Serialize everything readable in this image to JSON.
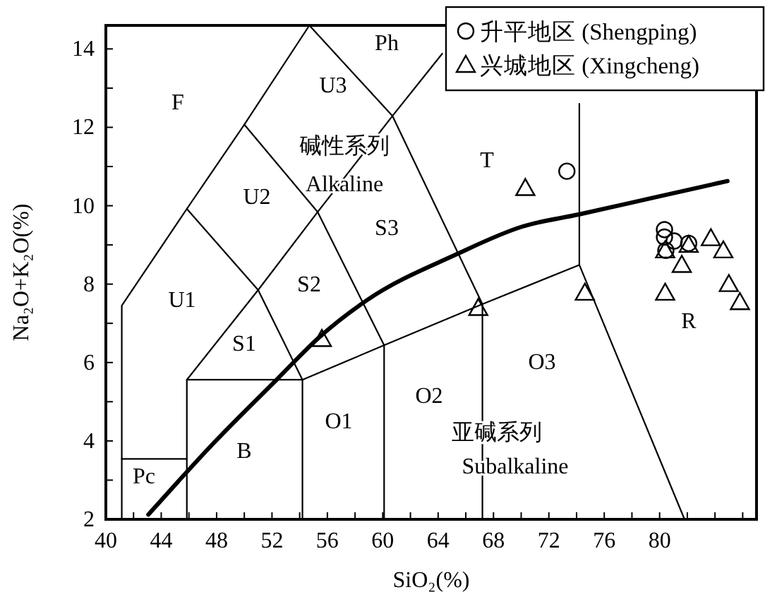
{
  "chart_data": {
    "type": "scatter",
    "xlabel": "SiO₂(%)",
    "ylabel": "Na₂O+K₂O(%)",
    "xlim": [
      40,
      87
    ],
    "ylim": [
      2,
      14.6
    ],
    "xticks": [
      40,
      {
        "value": 42,
        "label": null
      },
      44,
      {
        "value": 46,
        "label": null
      },
      48,
      {
        "value": 50,
        "label": null
      },
      52,
      {
        "value": 54,
        "label": null
      },
      56,
      {
        "value": 58,
        "label": null
      },
      60,
      {
        "value": 62,
        "label": null
      },
      64,
      {
        "value": 66,
        "label": null
      },
      68,
      {
        "value": 70,
        "label": null
      },
      72,
      {
        "value": 74,
        "label": null
      },
      76,
      {
        "value": 78,
        "label": null
      },
      80,
      {
        "value": 82,
        "label": null
      },
      {
        "value": 84,
        "label": null
      },
      {
        "value": 86,
        "label": null
      }
    ],
    "yticks": [
      2,
      {
        "value": 3,
        "label": null
      },
      4,
      {
        "value": 5,
        "label": null
      },
      6,
      {
        "value": 7,
        "label": null
      },
      8,
      {
        "value": 9,
        "label": null
      },
      10,
      {
        "value": 11,
        "label": null
      },
      12,
      {
        "value": 13,
        "label": null
      },
      14
    ],
    "grid": false,
    "legend": "top right",
    "series": [
      {
        "name": "升平地区 (Shengping)",
        "marker": "circle",
        "color": "#000000",
        "x": [
          73.3,
          80.35,
          80.35,
          80.45,
          81.05,
          82.1
        ],
        "values": [
          10.88,
          9.39,
          9.2,
          8.86,
          9.1,
          9.04
        ]
      },
      {
        "name": "兴城地区 (Xingcheng)",
        "marker": "triangle",
        "color": "#000000",
        "x": [
          55.6,
          66.9,
          70.3,
          74.6,
          80.4,
          80.4,
          81.6,
          82.1,
          83.7,
          84.6,
          85.0,
          85.8
        ],
        "values": [
          6.6,
          7.39,
          10.45,
          7.78,
          7.78,
          8.86,
          8.49,
          9.0,
          9.17,
          8.86,
          8.0,
          7.54
        ]
      },
      {
        "type": "line",
        "line_style": "solid",
        "color": "#000000",
        "x": [
          43.07,
          47.77,
          52.3,
          55.4,
          58.9,
          65.2,
          70.1,
          74.2,
          79.5,
          84.9
        ],
        "values": [
          2.12,
          3.94,
          5.55,
          6.64,
          7.6,
          8.74,
          9.47,
          9.78,
          10.2,
          10.63
        ]
      },
      {
        "type": "line",
        "color": "#000000",
        "x": [
          41.15,
          41.15,
          45.85,
          50,
          54.7
        ],
        "values": [
          2,
          7.45,
          9.92,
          12.07,
          14.6
        ]
      },
      {
        "type": "line",
        "color": "#000000",
        "x": [
          45.85,
          51.0,
          54.2
        ],
        "values": [
          9.92,
          7.85,
          5.56
        ]
      },
      {
        "type": "line",
        "color": "#000000",
        "x": [
          50,
          55.3,
          60.1,
          60.1
        ],
        "values": [
          12.07,
          9.84,
          6.44,
          2
        ]
      },
      {
        "type": "line",
        "color": "#000000",
        "x": [
          54.7,
          60.7,
          67.2,
          67.2
        ],
        "values": [
          14.6,
          12.29,
          7.49,
          2
        ]
      },
      {
        "type": "line",
        "color": "#000000",
        "x": [
          45.85,
          45.85,
          51.0,
          55.3,
          60.7,
          64.3
        ],
        "values": [
          2,
          5.56,
          7.85,
          9.84,
          12.29,
          13.88
        ]
      },
      {
        "type": "line",
        "color": "#000000",
        "x": [
          45.85,
          54.2,
          54.2
        ],
        "values": [
          5.56,
          5.56,
          2
        ]
      },
      {
        "type": "line",
        "color": "#000000",
        "x": [
          54.2,
          60.1,
          67.2,
          74.2,
          81.8
        ],
        "values": [
          5.56,
          6.44,
          7.49,
          8.49,
          2
        ]
      },
      {
        "type": "line",
        "color": "#000000",
        "x": [
          74.2,
          74.2
        ],
        "values": [
          8.49,
          12.6
        ]
      },
      {
        "type": "line",
        "color": "#000000",
        "x": [
          41.15,
          45.85
        ],
        "values": [
          3.54,
          3.54
        ]
      }
    ],
    "annotations": [
      "F",
      "U3",
      "Ph",
      "U2",
      "S3",
      "T",
      "U1",
      "S2",
      "S1",
      "O1",
      "O2",
      "O3",
      "B",
      "Pc",
      "R",
      "碱性系列",
      "Alkaline",
      "亚碱系列",
      "Subalkaline"
    ]
  }
}
